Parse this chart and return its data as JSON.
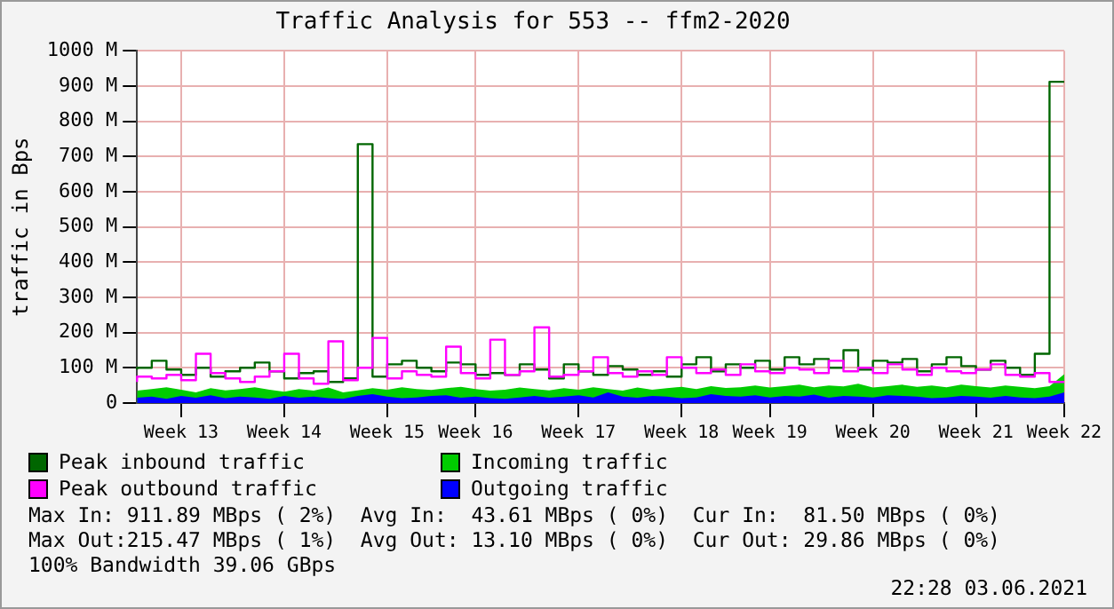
{
  "chart_data": {
    "type": "step",
    "title": "Traffic Analysis for 553 -- ffm2-2020",
    "ylabel": "traffic in Bps",
    "categories": [
      null,
      null,
      null,
      "Week 13",
      null,
      null,
      null,
      null,
      null,
      null,
      "Week 14",
      null,
      null,
      null,
      null,
      null,
      null,
      "Week 15",
      null,
      null,
      null,
      null,
      null,
      "Week 16",
      null,
      null,
      null,
      null,
      null,
      null,
      "Week 17",
      null,
      null,
      null,
      null,
      null,
      null,
      "Week 18",
      null,
      null,
      null,
      null,
      null,
      "Week 19",
      null,
      null,
      null,
      null,
      null,
      null,
      "Week 20",
      null,
      null,
      null,
      null,
      null,
      null,
      "Week 21",
      null,
      null,
      null,
      null,
      null,
      "Week 22"
    ],
    "series": [
      {
        "name": "Peak inbound traffic",
        "color": "#006600",
        "values": [
          95,
          100,
          120,
          95,
          80,
          100,
          75,
          90,
          100,
          115,
          90,
          70,
          85,
          90,
          60,
          70,
          735,
          75,
          110,
          120,
          100,
          90,
          115,
          110,
          80,
          85,
          80,
          110,
          95,
          70,
          110,
          90,
          80,
          105,
          95,
          80,
          90,
          75,
          110,
          130,
          90,
          110,
          100,
          120,
          95,
          130,
          110,
          125,
          100,
          150,
          95,
          120,
          115,
          125,
          90,
          110,
          130,
          105,
          95,
          120,
          100,
          80,
          140,
          912
        ]
      },
      {
        "name": "Incoming traffic",
        "type": "area",
        "color": "#00cc00",
        "values": [
          35,
          40,
          45,
          38,
          30,
          42,
          36,
          40,
          45,
          38,
          32,
          40,
          35,
          44,
          30,
          36,
          42,
          38,
          45,
          40,
          37,
          42,
          46,
          40,
          35,
          38,
          44,
          40,
          36,
          42,
          38,
          45,
          40,
          35,
          44,
          38,
          42,
          46,
          40,
          48,
          43,
          45,
          50,
          44,
          48,
          52,
          45,
          50,
          47,
          55,
          44,
          48,
          52,
          46,
          50,
          45,
          52,
          48,
          44,
          50,
          46,
          42,
          48,
          82
        ]
      },
      {
        "name": "Peak outbound traffic",
        "color": "#ff00ff",
        "values": [
          60,
          75,
          70,
          80,
          65,
          140,
          85,
          70,
          60,
          75,
          90,
          140,
          70,
          55,
          175,
          65,
          100,
          185,
          70,
          90,
          80,
          75,
          160,
          85,
          70,
          180,
          80,
          90,
          215,
          75,
          80,
          90,
          130,
          85,
          75,
          90,
          80,
          130,
          100,
          85,
          95,
          80,
          110,
          90,
          85,
          100,
          95,
          85,
          120,
          90,
          100,
          85,
          110,
          95,
          80,
          100,
          90,
          85,
          95,
          110,
          80,
          75,
          85,
          60
        ]
      },
      {
        "name": "Outgoing traffic",
        "type": "area",
        "color": "#0000ff",
        "values": [
          15,
          18,
          12,
          20,
          15,
          22,
          14,
          18,
          16,
          12,
          20,
          15,
          18,
          14,
          12,
          20,
          25,
          18,
          14,
          16,
          20,
          22,
          15,
          18,
          14,
          12,
          16,
          20,
          15,
          18,
          22,
          16,
          30,
          18,
          15,
          20,
          18,
          14,
          16,
          25,
          20,
          18,
          22,
          16,
          20,
          18,
          24,
          15,
          20,
          18,
          16,
          22,
          20,
          18,
          14,
          16,
          20,
          18,
          15,
          20,
          16,
          14,
          18,
          30
        ]
      }
    ],
    "ylim": [
      0,
      1000
    ],
    "yticks": [
      0,
      {
        "value": 100,
        "label": "100 M"
      },
      {
        "value": 200,
        "label": "200 M"
      },
      {
        "value": 300,
        "label": "300 M"
      },
      {
        "value": 400,
        "label": "400 M"
      },
      {
        "value": 500,
        "label": "500 M"
      },
      {
        "value": 600,
        "label": "600 M"
      },
      {
        "value": 700,
        "label": "700 M"
      },
      {
        "value": 800,
        "label": "800 M"
      },
      {
        "value": 900,
        "label": "900 M"
      },
      {
        "value": 1000,
        "label": "1000 M"
      }
    ],
    "grid": true,
    "legend": "bottom",
    "annotations": [
      "Max In: 911.89 MBps ( 2%)  Avg In:  43.61 MBps ( 0%)  Cur In:  81.50 MBps ( 0%)",
      "Max Out:215.47 MBps ( 1%)  Avg Out: 13.10 MBps ( 0%)  Cur Out: 29.86 MBps ( 0%)",
      "100% Bandwidth 39.06 GBps",
      "22:28 03.06.2021"
    ]
  }
}
